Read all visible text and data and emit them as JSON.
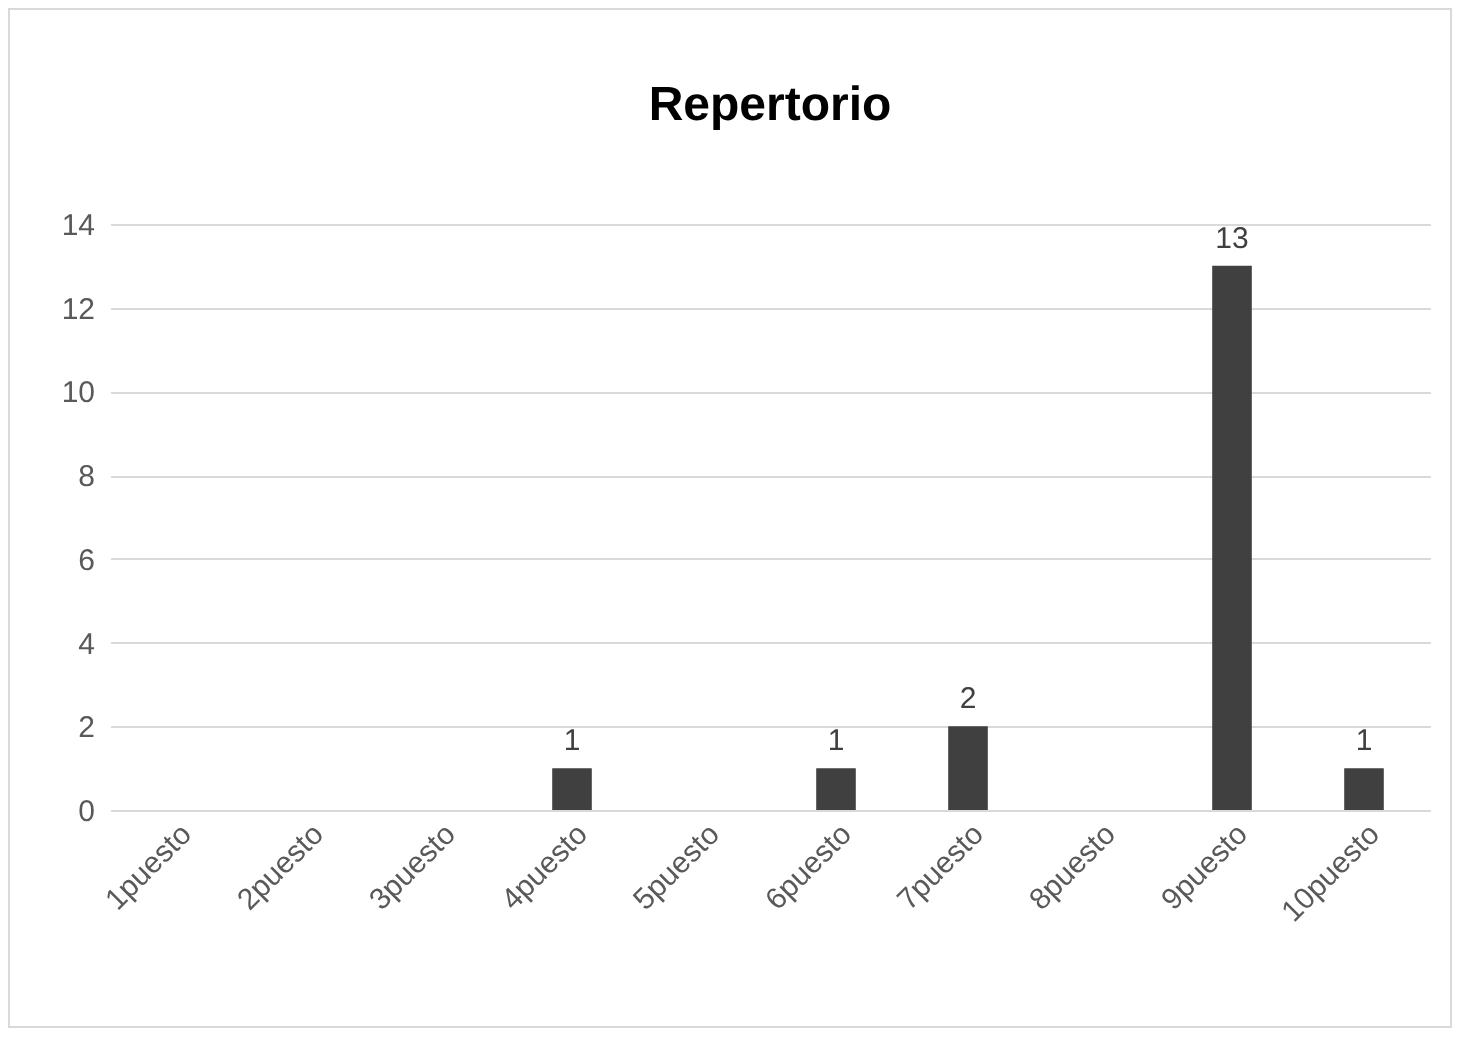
{
  "chart_data": {
    "type": "bar",
    "title": "Repertorio",
    "categories": [
      "1puesto",
      "2puesto",
      "3puesto",
      "4puesto",
      "5puesto",
      "6puesto",
      "7puesto",
      "8puesto",
      "9puesto",
      "10puesto"
    ],
    "values": [
      0,
      0,
      0,
      1,
      0,
      1,
      2,
      0,
      13,
      1
    ],
    "value_labels": [
      null,
      null,
      null,
      "1",
      null,
      "1",
      "2",
      null,
      "13",
      "1"
    ],
    "color": "#404040",
    "ylim": [
      0,
      14
    ],
    "yticks": [
      0,
      2,
      4,
      6,
      8,
      10,
      12,
      14
    ],
    "grid": "y"
  }
}
